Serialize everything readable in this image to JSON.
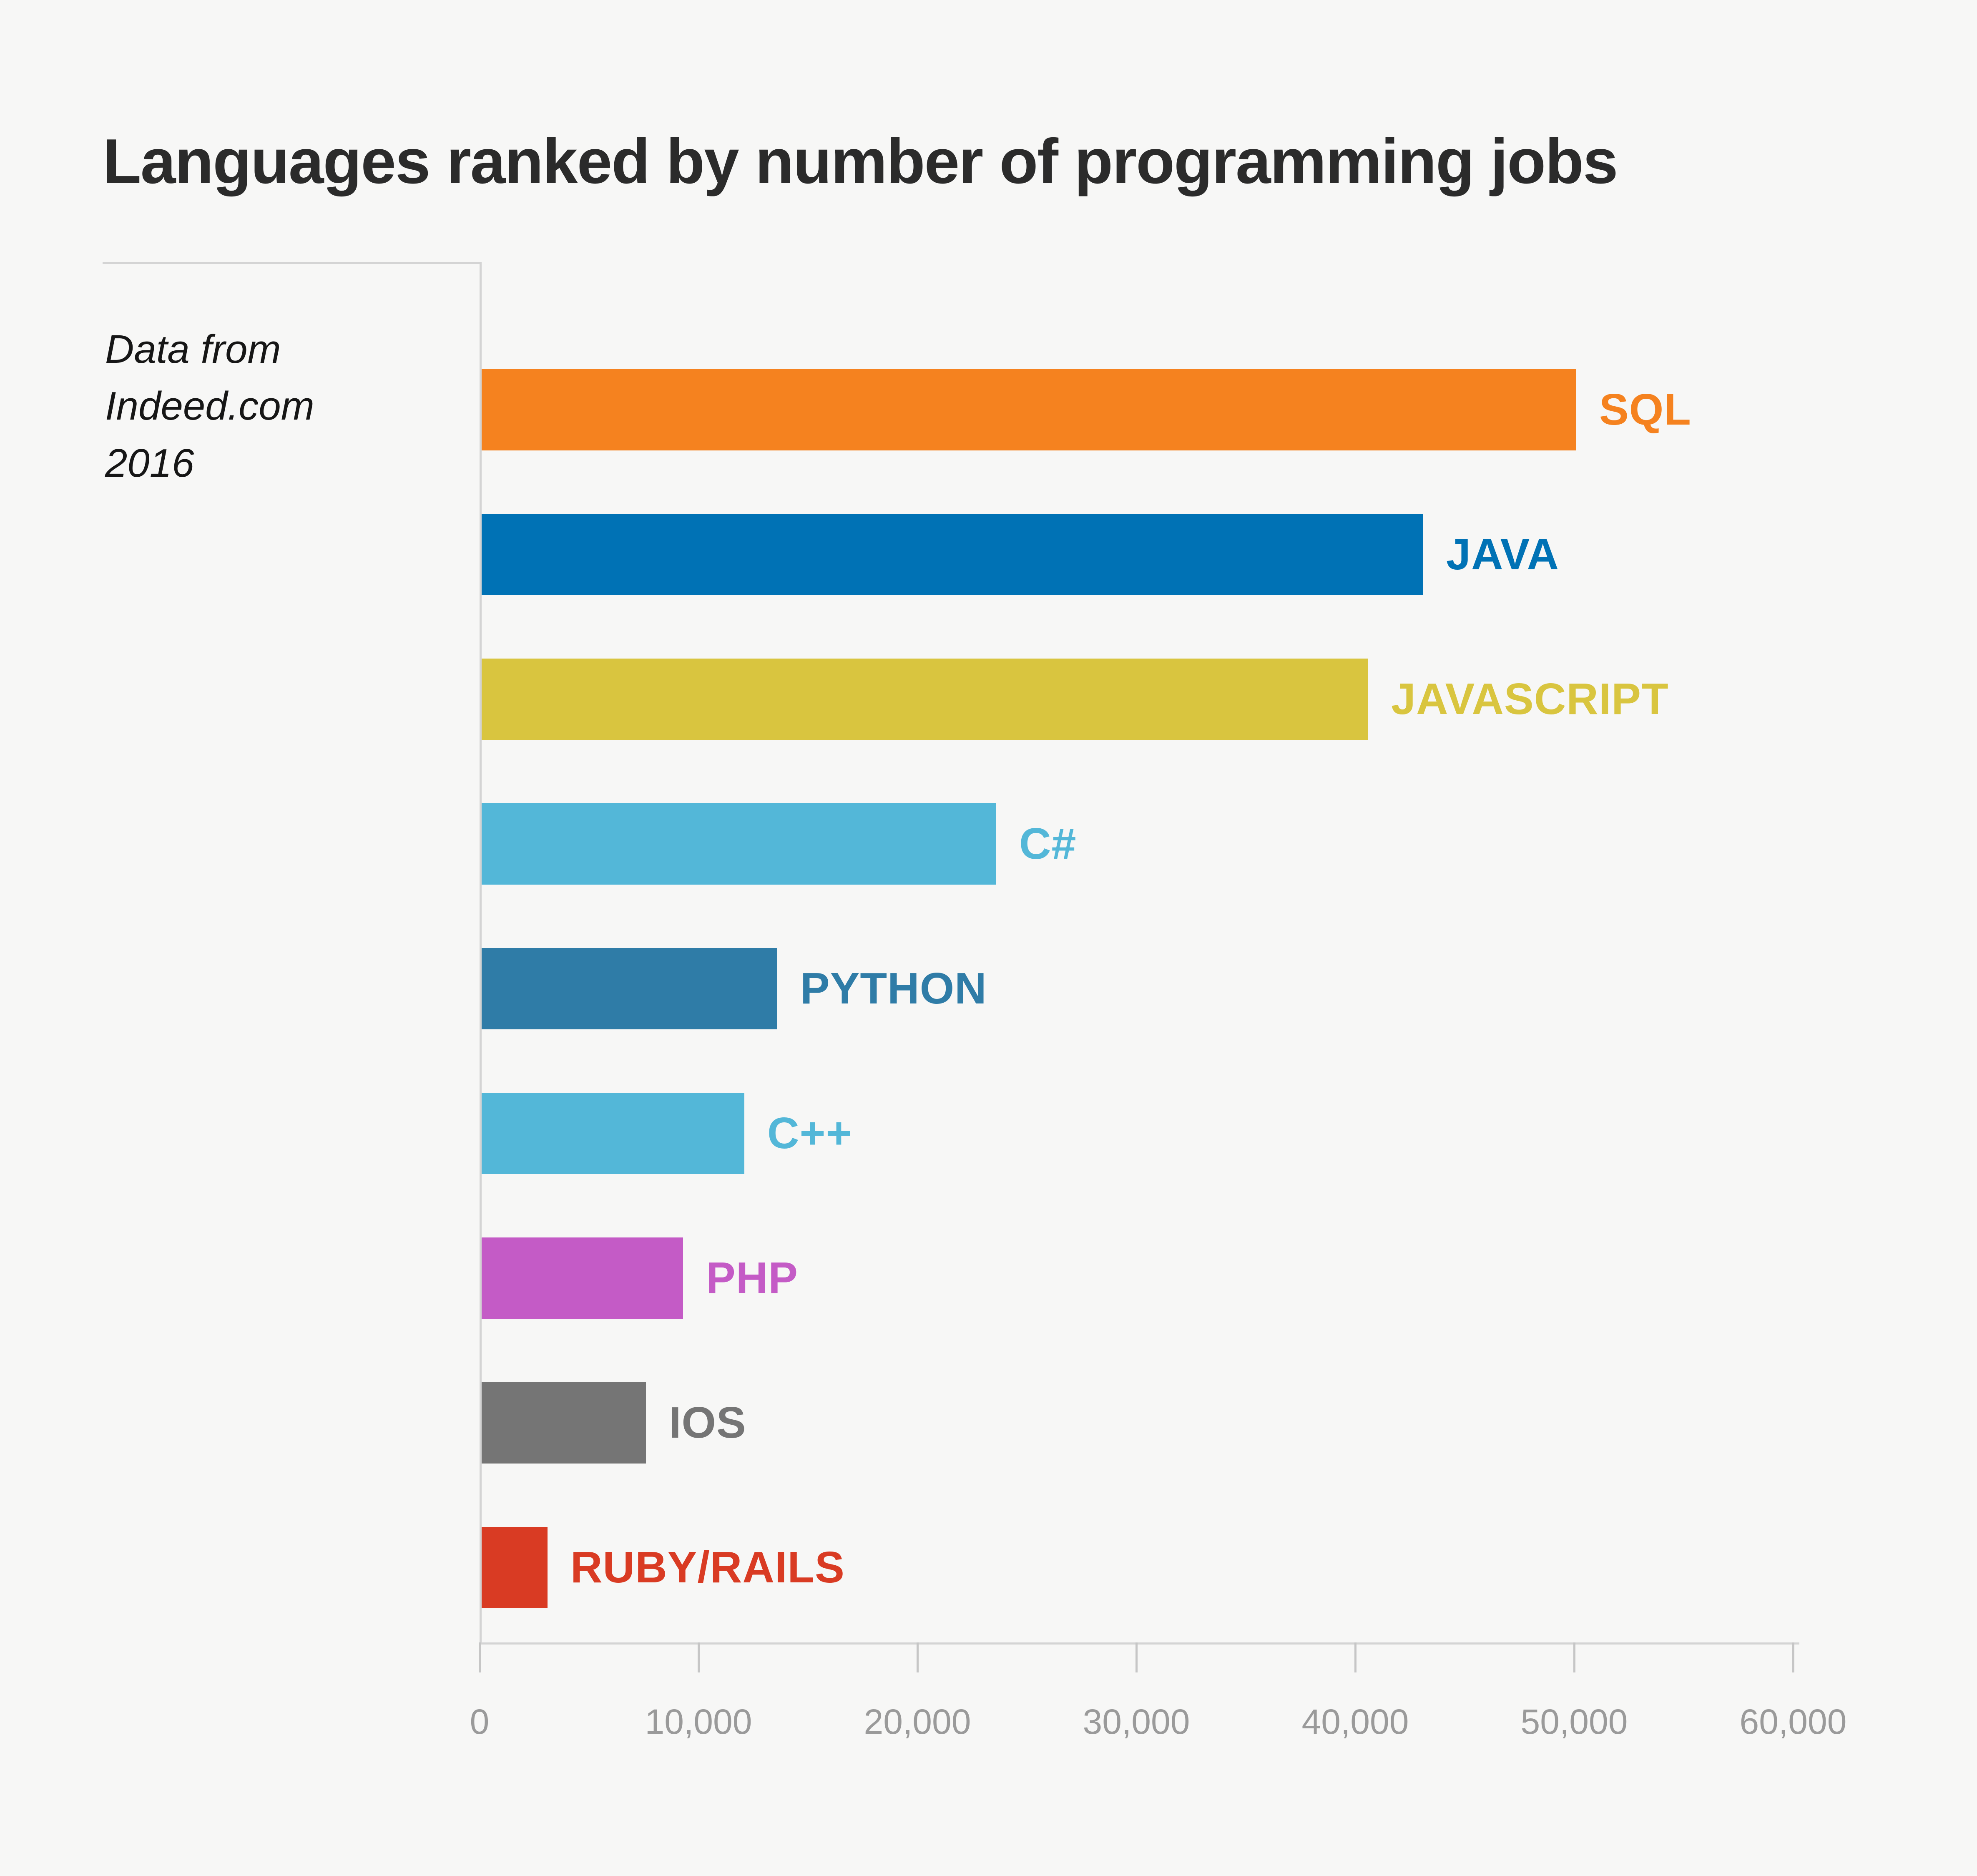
{
  "title": "Languages ranked by number of programming jobs",
  "note": {
    "lines": [
      "Data from",
      "Indeed.com",
      "2016"
    ]
  },
  "chart_data": {
    "type": "bar",
    "orientation": "horizontal",
    "title": "Languages ranked by number of programming jobs",
    "source_note": "Data from Indeed.com 2016",
    "categories": [
      "SQL",
      "JAVA",
      "JAVASCRIPT",
      "C#",
      "PYTHON",
      "C++",
      "PHP",
      "IOS",
      "RUBY/RAILS"
    ],
    "values": [
      50000,
      43000,
      40500,
      23500,
      13500,
      12000,
      9200,
      7500,
      3000
    ],
    "bar_colors": [
      "#f5821f",
      "#0072b5",
      "#d9c53f",
      "#53b7d8",
      "#2f7ca7",
      "#53b7d8",
      "#c45bc6",
      "#757575",
      "#d93b23"
    ],
    "label_colors": [
      "#f5821f",
      "#0072b5",
      "#d9c53f",
      "#53b7d8",
      "#2f7ca7",
      "#53b7d8",
      "#c45bc6",
      "#757575",
      "#d93b23"
    ],
    "xlabel": "",
    "ylabel": "",
    "xlim": [
      0,
      60000
    ],
    "xticks": [
      0,
      10000,
      20000,
      30000,
      40000,
      50000,
      60000
    ],
    "xtick_labels": [
      "0",
      "10,000",
      "20,000",
      "30,000",
      "40,000",
      "50,000",
      "60,000"
    ],
    "grid": false,
    "legend": false,
    "bar_label_position": "right-of-bar-end"
  },
  "style_colors": {
    "background": "#f7f7f6",
    "axis_line": "#d4d4d4",
    "tick_mark": "#c6c6c6",
    "tick_label": "#9a9a9a",
    "title_text": "#2b2b2b",
    "note_text": "#161616"
  }
}
